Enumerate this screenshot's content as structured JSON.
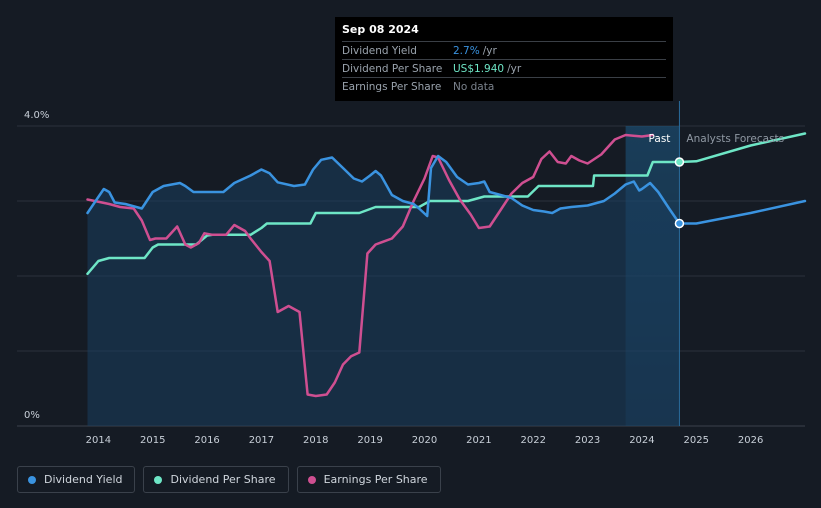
{
  "tooltip": {
    "date": "Sep 08 2024",
    "rows": [
      {
        "label": "Dividend Yield",
        "value": "2.7%",
        "unit": "/yr",
        "color": "#3a93e0"
      },
      {
        "label": "Dividend Per Share",
        "value": "US$1.940",
        "unit": "/yr",
        "color": "#6ee6c6"
      },
      {
        "label": "Earnings Per Share",
        "value": "No data",
        "unit": "",
        "color": "#7a828c"
      }
    ]
  },
  "regions": {
    "past_label": "Past",
    "forecast_label": "Analysts Forecasts"
  },
  "legend": [
    {
      "label": "Dividend Yield",
      "color": "#3a93e0"
    },
    {
      "label": "Dividend Per Share",
      "color": "#6ee6c6"
    },
    {
      "label": "Earnings Per Share",
      "color": "#cf4f91"
    }
  ],
  "chart_data": {
    "type": "line",
    "x_range": [
      2013.8,
      2027.0
    ],
    "y_axis": {
      "ticks": [
        {
          "value": 4,
          "label": "4.0%"
        },
        {
          "value": 0,
          "label": "0%"
        }
      ],
      "ylim": [
        0,
        4
      ]
    },
    "x_ticks": [
      "2014",
      "2015",
      "2016",
      "2017",
      "2018",
      "2019",
      "2020",
      "2021",
      "2022",
      "2023",
      "2024",
      "2025",
      "2026"
    ],
    "tooltip_x": 2024.69,
    "past_shade_start": 2023.7,
    "series": [
      {
        "name": "Dividend Yield",
        "color": "#3a93e0",
        "fill": true,
        "points": [
          [
            2013.8,
            2.84
          ],
          [
            2013.95,
            3.0
          ],
          [
            2014.1,
            3.16
          ],
          [
            2014.2,
            3.12
          ],
          [
            2014.3,
            2.98
          ],
          [
            2014.5,
            2.96
          ],
          [
            2014.8,
            2.9
          ],
          [
            2015.0,
            3.12
          ],
          [
            2015.2,
            3.2
          ],
          [
            2015.5,
            3.24
          ],
          [
            2015.6,
            3.2
          ],
          [
            2015.75,
            3.12
          ],
          [
            2016.0,
            3.12
          ],
          [
            2016.3,
            3.12
          ],
          [
            2016.5,
            3.24
          ],
          [
            2016.8,
            3.34
          ],
          [
            2017.0,
            3.42
          ],
          [
            2017.15,
            3.37
          ],
          [
            2017.3,
            3.25
          ],
          [
            2017.6,
            3.2
          ],
          [
            2017.8,
            3.22
          ],
          [
            2017.95,
            3.42
          ],
          [
            2018.1,
            3.55
          ],
          [
            2018.3,
            3.58
          ],
          [
            2018.5,
            3.44
          ],
          [
            2018.7,
            3.3
          ],
          [
            2018.85,
            3.26
          ],
          [
            2019.0,
            3.34
          ],
          [
            2019.1,
            3.4
          ],
          [
            2019.2,
            3.34
          ],
          [
            2019.4,
            3.08
          ],
          [
            2019.6,
            3.0
          ],
          [
            2019.8,
            2.96
          ],
          [
            2019.9,
            2.9
          ],
          [
            2020.05,
            2.8
          ],
          [
            2020.12,
            3.44
          ],
          [
            2020.25,
            3.6
          ],
          [
            2020.4,
            3.52
          ],
          [
            2020.6,
            3.32
          ],
          [
            2020.8,
            3.22
          ],
          [
            2021.0,
            3.24
          ],
          [
            2021.1,
            3.26
          ],
          [
            2021.2,
            3.12
          ],
          [
            2021.4,
            3.08
          ],
          [
            2021.6,
            3.04
          ],
          [
            2021.8,
            2.94
          ],
          [
            2022.0,
            2.88
          ],
          [
            2022.2,
            2.86
          ],
          [
            2022.35,
            2.84
          ],
          [
            2022.5,
            2.9
          ],
          [
            2022.7,
            2.92
          ],
          [
            2023.0,
            2.94
          ],
          [
            2023.1,
            2.96
          ],
          [
            2023.3,
            3.0
          ],
          [
            2023.5,
            3.1
          ],
          [
            2023.7,
            3.22
          ],
          [
            2023.85,
            3.26
          ],
          [
            2023.95,
            3.14
          ],
          [
            2024.0,
            3.16
          ],
          [
            2024.15,
            3.24
          ],
          [
            2024.3,
            3.12
          ],
          [
            2024.5,
            2.9
          ],
          [
            2024.69,
            2.7
          ],
          [
            2025.0,
            2.7
          ],
          [
            2026.0,
            2.84
          ],
          [
            2027.0,
            3.0
          ]
        ]
      },
      {
        "name": "Dividend Per Share",
        "color": "#6ee6c6",
        "fill": false,
        "points": [
          [
            2013.8,
            2.03
          ],
          [
            2014.0,
            2.2
          ],
          [
            2014.2,
            2.24
          ],
          [
            2014.85,
            2.24
          ],
          [
            2015.0,
            2.38
          ],
          [
            2015.1,
            2.42
          ],
          [
            2015.8,
            2.42
          ],
          [
            2016.0,
            2.54
          ],
          [
            2016.1,
            2.55
          ],
          [
            2016.8,
            2.55
          ],
          [
            2017.0,
            2.64
          ],
          [
            2017.1,
            2.7
          ],
          [
            2017.9,
            2.7
          ],
          [
            2018.0,
            2.84
          ],
          [
            2018.8,
            2.84
          ],
          [
            2019.1,
            2.92
          ],
          [
            2019.9,
            2.92
          ],
          [
            2020.1,
            3.0
          ],
          [
            2020.8,
            3.0
          ],
          [
            2021.1,
            3.06
          ],
          [
            2021.9,
            3.06
          ],
          [
            2022.1,
            3.2
          ],
          [
            2023.1,
            3.2
          ],
          [
            2023.12,
            3.34
          ],
          [
            2024.1,
            3.34
          ],
          [
            2024.2,
            3.52
          ],
          [
            2024.69,
            3.52
          ],
          [
            2025.0,
            3.53
          ],
          [
            2026.0,
            3.74
          ],
          [
            2027.0,
            3.9
          ]
        ]
      },
      {
        "name": "Earnings Per Share",
        "color": "#cf4f91",
        "fill": false,
        "points": [
          [
            2013.8,
            3.02
          ],
          [
            2014.2,
            2.96
          ],
          [
            2014.4,
            2.92
          ],
          [
            2014.65,
            2.9
          ],
          [
            2014.8,
            2.74
          ],
          [
            2014.95,
            2.48
          ],
          [
            2015.05,
            2.5
          ],
          [
            2015.25,
            2.5
          ],
          [
            2015.45,
            2.66
          ],
          [
            2015.6,
            2.42
          ],
          [
            2015.7,
            2.38
          ],
          [
            2015.85,
            2.44
          ],
          [
            2015.95,
            2.57
          ],
          [
            2016.1,
            2.55
          ],
          [
            2016.35,
            2.55
          ],
          [
            2016.5,
            2.68
          ],
          [
            2016.7,
            2.6
          ],
          [
            2016.8,
            2.5
          ],
          [
            2017.0,
            2.32
          ],
          [
            2017.15,
            2.2
          ],
          [
            2017.3,
            1.52
          ],
          [
            2017.5,
            1.6
          ],
          [
            2017.7,
            1.52
          ],
          [
            2017.85,
            0.42
          ],
          [
            2018.0,
            0.4
          ],
          [
            2018.2,
            0.42
          ],
          [
            2018.35,
            0.58
          ],
          [
            2018.5,
            0.82
          ],
          [
            2018.65,
            0.93
          ],
          [
            2018.8,
            0.98
          ],
          [
            2018.95,
            2.3
          ],
          [
            2019.1,
            2.42
          ],
          [
            2019.4,
            2.5
          ],
          [
            2019.6,
            2.66
          ],
          [
            2019.8,
            3.0
          ],
          [
            2020.0,
            3.3
          ],
          [
            2020.15,
            3.6
          ],
          [
            2020.25,
            3.58
          ],
          [
            2020.45,
            3.28
          ],
          [
            2020.65,
            3.02
          ],
          [
            2020.85,
            2.82
          ],
          [
            2021.0,
            2.64
          ],
          [
            2021.2,
            2.66
          ],
          [
            2021.4,
            2.88
          ],
          [
            2021.6,
            3.1
          ],
          [
            2021.8,
            3.24
          ],
          [
            2022.0,
            3.32
          ],
          [
            2022.15,
            3.56
          ],
          [
            2022.3,
            3.66
          ],
          [
            2022.45,
            3.52
          ],
          [
            2022.6,
            3.5
          ],
          [
            2022.7,
            3.6
          ],
          [
            2022.85,
            3.54
          ],
          [
            2023.0,
            3.5
          ],
          [
            2023.25,
            3.62
          ],
          [
            2023.5,
            3.82
          ],
          [
            2023.7,
            3.88
          ],
          [
            2024.0,
            3.86
          ],
          [
            2024.2,
            3.88
          ]
        ]
      }
    ],
    "highlight_points": [
      {
        "series": "Dividend Yield",
        "x": 2024.69,
        "y": 2.7
      },
      {
        "series": "Dividend Per Share",
        "x": 2024.69,
        "y": 3.52
      }
    ]
  }
}
